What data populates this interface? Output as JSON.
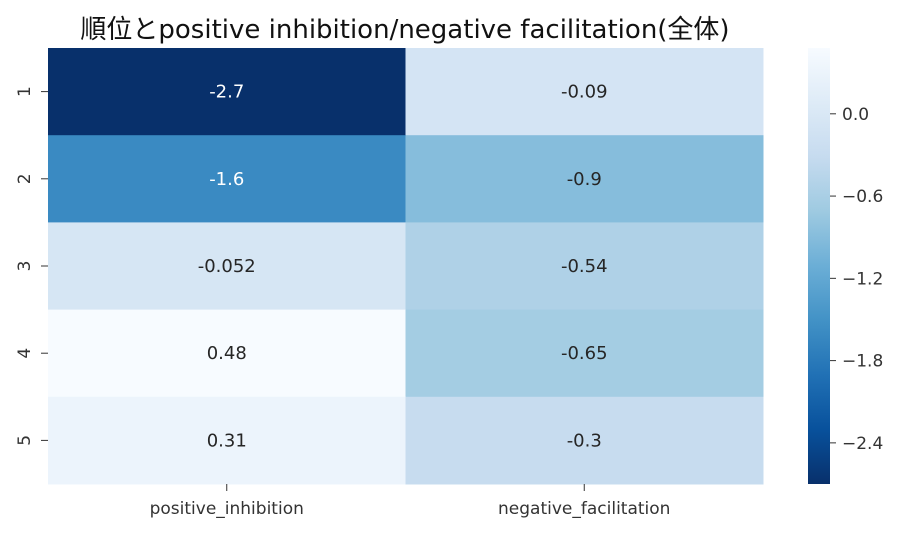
{
  "chart_data": {
    "type": "heatmap",
    "title": "順位とpositive inhibition/negative facilitation(全体)",
    "xlabel": "",
    "ylabel": "",
    "columns": [
      "positive_inhibition",
      "negative_facilitation"
    ],
    "rows": [
      "1",
      "2",
      "3",
      "4",
      "5"
    ],
    "values": [
      [
        -2.7,
        -0.09
      ],
      [
        -1.6,
        -0.9
      ],
      [
        -0.052,
        -0.54
      ],
      [
        0.48,
        -0.65
      ],
      [
        0.31,
        -0.3
      ]
    ],
    "annotations": [
      [
        "-2.7",
        "-0.09"
      ],
      [
        "-1.6",
        "-0.9"
      ],
      [
        "-0.052",
        "-0.54"
      ],
      [
        "0.48",
        "-0.65"
      ],
      [
        "0.31",
        "-0.3"
      ]
    ],
    "colormap": "Blues_r",
    "vmin": -2.7,
    "vmax": 0.48,
    "colorbar": {
      "ticks": [
        0.0,
        -0.6,
        -1.2,
        -1.8,
        -2.4
      ],
      "tick_labels": [
        "0.0",
        "−0.6",
        "−1.2",
        "−1.8",
        "−2.4"
      ]
    }
  }
}
